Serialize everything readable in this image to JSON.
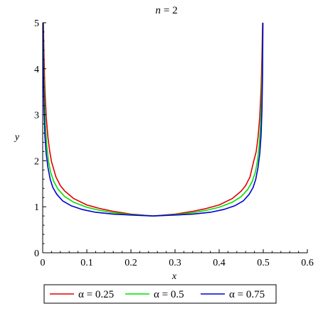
{
  "chart_data": {
    "type": "line",
    "title_prefix": "n",
    "title_value": "= 2",
    "xlabel": "x",
    "ylabel": "y",
    "xlim": [
      0,
      0.6
    ],
    "ylim": [
      0,
      5
    ],
    "x_ticks": [
      0,
      0.1,
      0.2,
      0.3,
      0.4,
      0.5,
      0.6
    ],
    "x_tick_labels": [
      "0",
      "0.1",
      "0.2",
      "0.3",
      "0.4",
      "0.5",
      "0.6"
    ],
    "y_ticks": [
      0,
      1,
      2,
      3,
      4,
      5
    ],
    "y_tick_labels": [
      "0",
      "1",
      "2",
      "3",
      "4",
      "5"
    ],
    "grid": false,
    "legend_position": "bottom",
    "series": [
      {
        "name": "α = 0.25",
        "color": "#e00000",
        "x": [
          0.0015,
          0.003,
          0.005,
          0.008,
          0.012,
          0.016,
          0.02,
          0.03,
          0.04,
          0.05,
          0.07,
          0.1,
          0.13,
          0.16,
          0.2,
          0.25,
          0.3,
          0.34,
          0.37,
          0.4,
          0.43,
          0.45,
          0.46,
          0.47,
          0.478,
          0.484,
          0.488,
          0.492,
          0.495,
          0.497,
          0.4985
        ],
        "y": [
          5.0,
          4.25,
          3.55,
          2.95,
          2.5,
          2.2,
          1.98,
          1.65,
          1.46,
          1.34,
          1.18,
          1.04,
          0.96,
          0.9,
          0.84,
          0.8,
          0.84,
          0.9,
          0.96,
          1.04,
          1.18,
          1.34,
          1.46,
          1.65,
          1.98,
          2.2,
          2.5,
          2.95,
          3.55,
          4.25,
          5.0
        ]
      },
      {
        "name": "α = 0.5",
        "color": "#00e000",
        "x": [
          0.001,
          0.002,
          0.004,
          0.006,
          0.009,
          0.013,
          0.018,
          0.025,
          0.035,
          0.05,
          0.07,
          0.1,
          0.13,
          0.16,
          0.2,
          0.25,
          0.3,
          0.34,
          0.37,
          0.4,
          0.43,
          0.45,
          0.465,
          0.475,
          0.482,
          0.487,
          0.491,
          0.494,
          0.496,
          0.498,
          0.499
        ],
        "y": [
          5.0,
          4.1,
          3.3,
          2.8,
          2.35,
          2.0,
          1.75,
          1.55,
          1.38,
          1.22,
          1.1,
          0.99,
          0.92,
          0.87,
          0.83,
          0.8,
          0.83,
          0.87,
          0.92,
          0.99,
          1.1,
          1.22,
          1.38,
          1.55,
          1.75,
          2.0,
          2.35,
          2.8,
          3.3,
          4.1,
          5.0
        ]
      },
      {
        "name": "α = 0.75",
        "color": "#0000d0",
        "x": [
          0.0008,
          0.0016,
          0.003,
          0.005,
          0.008,
          0.012,
          0.017,
          0.023,
          0.032,
          0.045,
          0.065,
          0.09,
          0.12,
          0.16,
          0.2,
          0.25,
          0.3,
          0.34,
          0.38,
          0.41,
          0.435,
          0.455,
          0.468,
          0.477,
          0.483,
          0.488,
          0.492,
          0.495,
          0.497,
          0.4984,
          0.4992
        ],
        "y": [
          5.0,
          3.9,
          3.1,
          2.55,
          2.15,
          1.85,
          1.6,
          1.42,
          1.27,
          1.13,
          1.02,
          0.94,
          0.88,
          0.84,
          0.82,
          0.8,
          0.82,
          0.84,
          0.88,
          0.94,
          1.02,
          1.13,
          1.27,
          1.42,
          1.6,
          1.85,
          2.15,
          2.55,
          3.1,
          3.9,
          5.0
        ]
      }
    ]
  }
}
